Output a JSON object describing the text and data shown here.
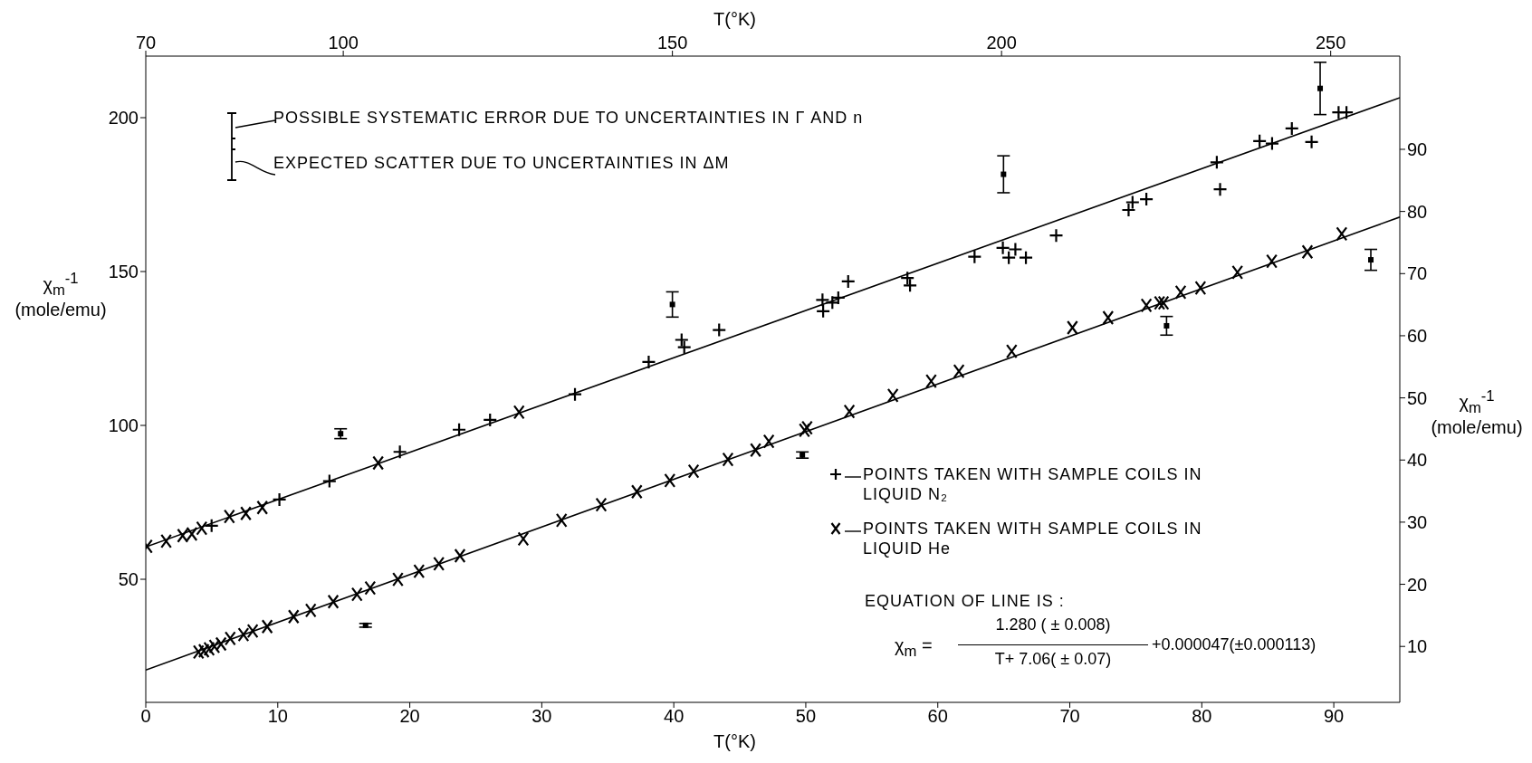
{
  "chart_data": {
    "type": "scatter",
    "xlabel": "T(°K)",
    "x2label": "T(°K)",
    "ylabel": "χ$_{m}$$^{-1}$ (mole/emu)",
    "y2label": "χ$_{m}$$^{-1}$ (mole/emu)",
    "xlim": [
      0,
      95
    ],
    "xticks": [
      0,
      10,
      20,
      30,
      40,
      50,
      60,
      70,
      80,
      90
    ],
    "x2lim": [
      70,
      260.5
    ],
    "x2ticks": [
      70,
      100,
      150,
      200,
      250
    ],
    "ylim": [
      10,
      220
    ],
    "yticks": [
      50,
      100,
      150,
      200
    ],
    "y2lim": [
      1,
      105
    ],
    "y2ticks": [
      10,
      20,
      30,
      40,
      50,
      60,
      70,
      80,
      90
    ],
    "grid": false,
    "legend": "bottom right",
    "annotations": [
      "POSSIBLE SYSTEMATIC ERROR DUE TO UNCERTAINTIES IN Γ AND n",
      "EXPECTED SCATTER DUE TO UNCERTAINTIES IN ΔM",
      "EQUATION OF LINE IS :",
      "χ$_{m}$ =",
      "1.280 ( ± 0.008)",
      "T+ 7.06( ± 0.07)",
      "+0.000047(±0.000113)"
    ],
    "series": [
      {
        "name": "POINTS TAKEN WITH SAMPLE COILS IN LIQUID N₂",
        "color": "#000000",
        "marker": "plus",
        "axis": "x2",
        "x": [
          80.0,
          90.3,
          97.9,
          108.6,
          117.6,
          122.3,
          135.2,
          146.4,
          151.4,
          151.8,
          157.1,
          172.8,
          172.9,
          174.3,
          175.2,
          176.7,
          185.7,
          186.1,
          195.9,
          200.2,
          201.1,
          202.1,
          203.7,
          208.3,
          219.3,
          219.9,
          222.0,
          232.7,
          233.2,
          239.2,
          241.1,
          244.1,
          247.1,
          251.2,
          252.4
        ],
        "values": [
          67.4,
          75.9,
          81.9,
          91.4,
          98.6,
          101.8,
          110.1,
          120.6,
          127.8,
          125.4,
          131.0,
          140.8,
          137.1,
          139.9,
          141.5,
          146.8,
          147.9,
          145.5,
          154.8,
          157.7,
          154.5,
          157.2,
          154.5,
          161.7,
          170.0,
          172.5,
          173.5,
          185.5,
          176.7,
          192.4,
          191.6,
          196.5,
          192.1,
          201.7,
          201.7
        ]
      },
      {
        "name": "POINTS TAKEN WITH SAMPLE COILS IN LIQUID He",
        "color": "#000000",
        "marker": "cross",
        "axis": "x2",
        "x": [
          70.2,
          73.1,
          75.6,
          77.0,
          78.5,
          82.7,
          85.2,
          87.7,
          105.3,
          126.7
        ],
        "values": [
          60.7,
          62.4,
          64.2,
          64.7,
          66.6,
          70.4,
          71.4,
          73.3,
          87.8,
          104.3
        ]
      },
      {
        "color": "#000000",
        "marker": "cross",
        "axis": "y2",
        "x": [
          4.0,
          4.4,
          4.8,
          5.2,
          5.7,
          6.4,
          7.4,
          8.1,
          9.2,
          11.2,
          12.5,
          14.2,
          16.0,
          17.0,
          19.1,
          20.7,
          22.2,
          23.8,
          28.6,
          31.5,
          34.5,
          37.2,
          39.7,
          41.5,
          44.1,
          46.2,
          47.2,
          49.9,
          50.1,
          53.3,
          56.6,
          59.5,
          61.6,
          65.6,
          70.2,
          72.9,
          75.8,
          76.8,
          77.1,
          78.4,
          79.9,
          82.7,
          85.3,
          88.0,
          90.6
        ],
        "values": [
          9.1,
          9.3,
          9.6,
          10.0,
          10.4,
          11.3,
          11.9,
          12.5,
          13.2,
          14.8,
          15.8,
          17.2,
          18.4,
          19.4,
          20.8,
          22.1,
          23.3,
          24.6,
          27.3,
          30.3,
          32.8,
          34.9,
          36.7,
          38.2,
          40.1,
          41.6,
          43.0,
          44.8,
          45.2,
          47.8,
          50.4,
          52.7,
          54.3,
          57.5,
          61.3,
          62.9,
          64.9,
          65.3,
          65.3,
          67.0,
          67.7,
          70.2,
          72.0,
          73.5,
          76.4
        ]
      },
      {
        "color": "#000000",
        "marker": "square",
        "axis": "x2",
        "x": [
          99.6,
          150.0,
          200.3,
          248.4,
          256.1
        ],
        "values": [
          97.3,
          139.3,
          181.6,
          209.5,
          153.8
        ],
        "errors": [
          1.6,
          4.1,
          6,
          8.5,
          3.4
        ]
      },
      {
        "color": "#000000",
        "marker": "square",
        "axis": "y2",
        "x": [
          16.65,
          49.74,
          77.33
        ],
        "values": [
          13.4,
          40.8,
          61.6
        ],
        "errors": [
          0.3,
          0.5,
          1.5
        ]
      },
      {
        "type": "line",
        "color": "#000000",
        "marker": "none",
        "line_style": "solid",
        "axis": "x2",
        "x": [
          70,
          260.5
        ],
        "values": [
          60.5,
          206.5
        ]
      },
      {
        "type": "line",
        "color": "#000000",
        "marker": "none",
        "line_style": "solid",
        "axis": "y2",
        "x": [
          0,
          95
        ],
        "values": [
          6.2,
          79.1
        ]
      }
    ]
  }
}
